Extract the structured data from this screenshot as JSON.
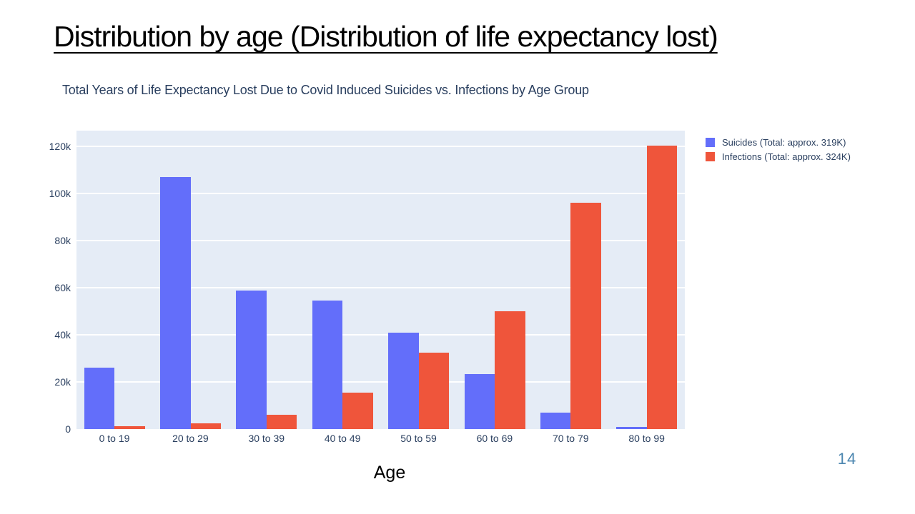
{
  "slide": {
    "title": "Distribution by age (Distribution of life expectancy lost)",
    "page_number": "14"
  },
  "chart_data": {
    "type": "bar",
    "title": "Total Years of Life Expectancy Lost Due to Covid Induced Suicides vs. Infections by Age Group",
    "xlabel": "Age",
    "ylabel": "",
    "categories": [
      "0 to 19",
      "20 to 29",
      "30 to 39",
      "40 to 49",
      "50 to 59",
      "60 to 69",
      "70 to 79",
      "80 to 99"
    ],
    "series": [
      {
        "name": "Suicides (Total: approx. 319K)",
        "color": "#636EFA",
        "values": [
          26000,
          107000,
          59000,
          54500,
          41000,
          23500,
          7000,
          1000
        ]
      },
      {
        "name": "Infections (Total: approx. 324K)",
        "color": "#EF553B",
        "values": [
          1200,
          2400,
          6000,
          15400,
          32500,
          50000,
          96200,
          120500
        ]
      }
    ],
    "ylim": [
      0,
      126800
    ],
    "yticks": [
      0,
      20000,
      40000,
      60000,
      80000,
      100000,
      120000
    ],
    "ytick_labels": [
      "0",
      "20k",
      "40k",
      "60k",
      "80k",
      "100k",
      "120k"
    ],
    "grid": true,
    "legend_position": "top-right-outside",
    "colors": {
      "plot_background": "#e5ecf6",
      "gridline": "#ffffff",
      "axis_text": "#2a3f5f",
      "chart_title_text": "#2a3f5f",
      "page_number_text": "#4d87b0"
    }
  }
}
